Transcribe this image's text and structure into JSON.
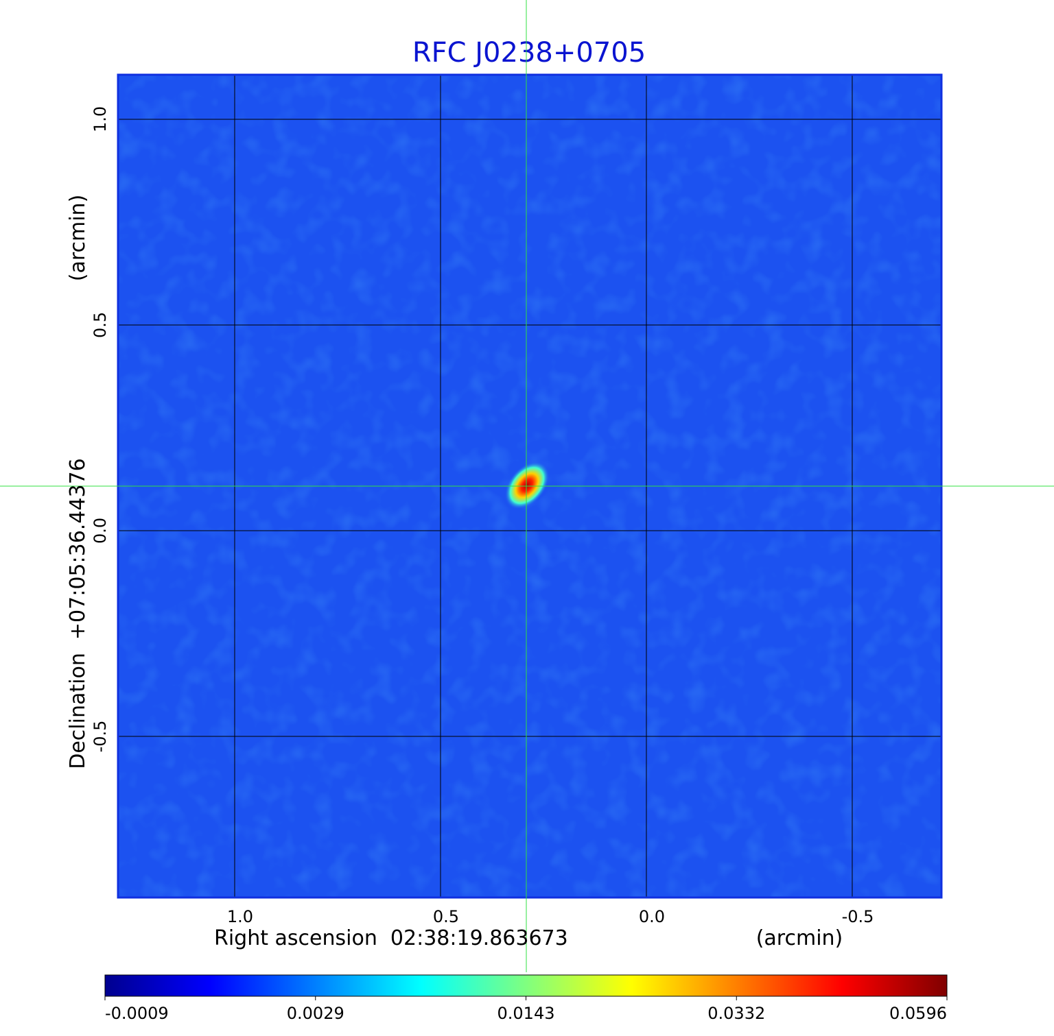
{
  "chart_data": {
    "type": "image",
    "title": "RFC J0238+0705",
    "x_label": "Right ascension  02:38:19.863673",
    "x_unit": "(arcmin)",
    "y_label": "Declination  +07:05:36.44376",
    "y_unit": "(arcmin)",
    "xlim": [
      1.2833,
      -0.7167
    ],
    "ylim": [
      -0.8917,
      1.1083
    ],
    "xticks": [
      {
        "value": 1,
        "label": "1.0"
      },
      0.5,
      {
        "value": 0,
        "label": "0.0"
      },
      -0.5
    ],
    "yticks": [
      {
        "value": 1,
        "label": "1.0"
      },
      0.5,
      {
        "value": 0,
        "label": "0.0"
      },
      -0.5
    ],
    "grid": true,
    "colormap": "jet",
    "colorbar_ticks": [
      -0.0009,
      0.0029,
      0.0143,
      0.0332,
      0.0596
    ]
  }
}
